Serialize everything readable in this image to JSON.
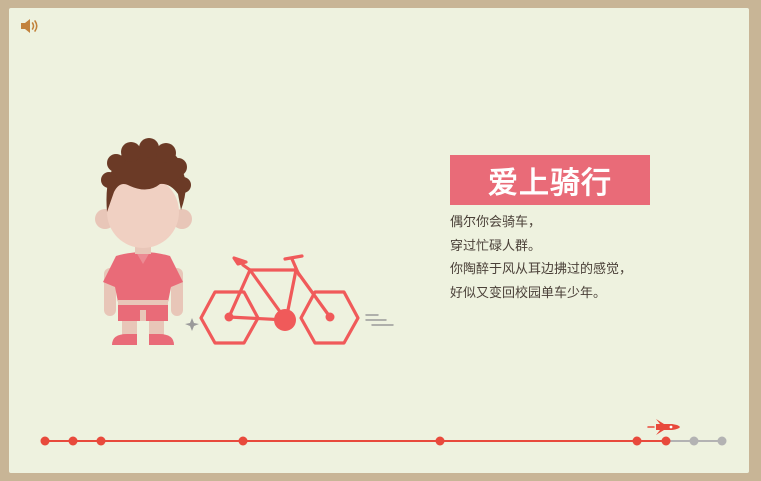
{
  "header": {
    "sound_icon": "speaker-icon"
  },
  "card": {
    "title": "爱上骑行",
    "lines": [
      "偶尔你会骑车，",
      "穿过忙碌人群。",
      "你陶醉于风从耳边拂过的感觉，",
      "好似又变回校园单车少年。"
    ]
  },
  "colors": {
    "accent": "#e96b78",
    "bike": "#f05a5a",
    "timeline_active": "#e84a3c",
    "timeline_inactive": "#b3b3b3",
    "background": "#eef2df",
    "frame": "#c8b596"
  },
  "timeline": {
    "progress_marker_icon": "rocket-icon",
    "nodes_total": 10,
    "nodes_active": 7
  }
}
